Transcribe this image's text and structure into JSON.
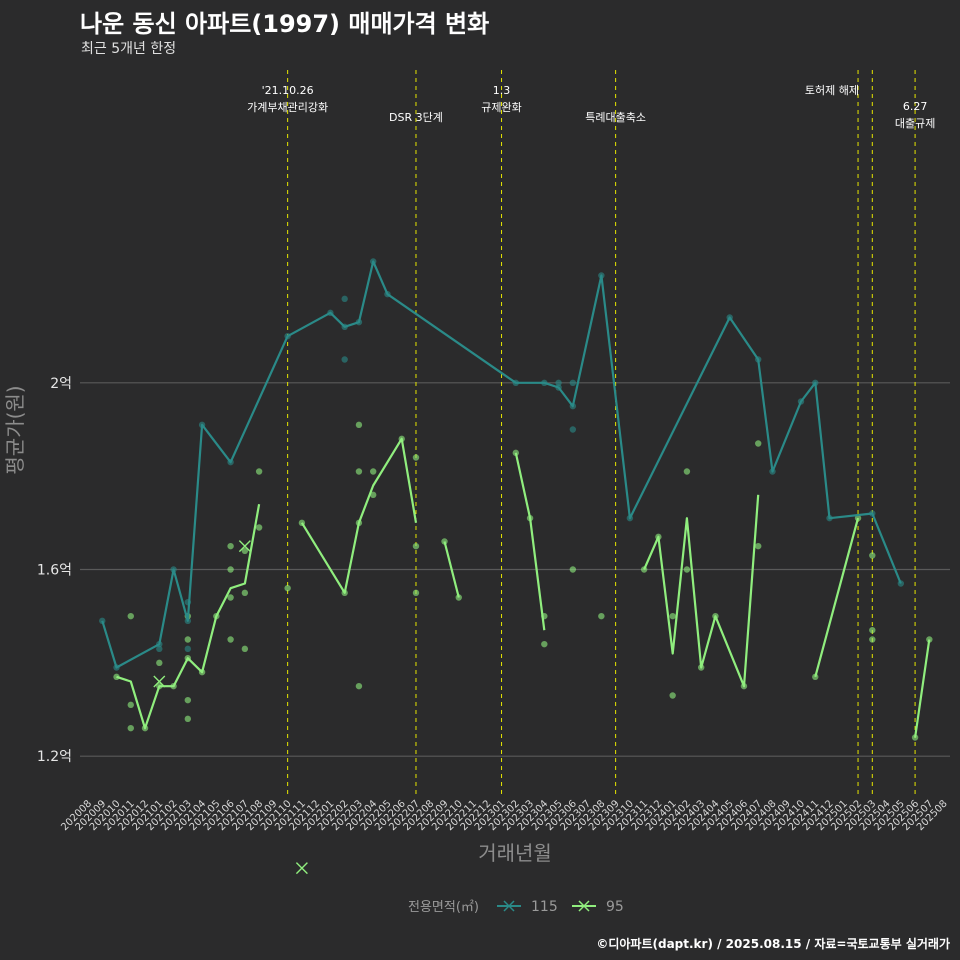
{
  "header": {
    "title": "나운 동신 아파트(1997) 매매가격 변화",
    "subtitle": "최근 5개년 한정"
  },
  "caption": "©디아파트(dapt.kr) / 2025.08.15 / 자료=국토교통부 실거래가",
  "chart_data": {
    "type": "line",
    "xlabel": "거래년월",
    "ylabel": "평균가(원)",
    "ylim": [
      0.85,
      2.65
    ],
    "y_unit": "억",
    "y_ticks": [
      {
        "value": 1.2,
        "label": "1.2억"
      },
      {
        "value": 1.6,
        "label": "1.6억"
      },
      {
        "value": 2.0,
        "label": "2억"
      }
    ],
    "grid": true,
    "categories": [
      "202008",
      "202009",
      "202010",
      "202011",
      "202012",
      "202101",
      "202102",
      "202103",
      "202104",
      "202105",
      "202106",
      "202107",
      "202108",
      "202109",
      "202110",
      "202111",
      "202112",
      "202201",
      "202202",
      "202203",
      "202204",
      "202205",
      "202206",
      "202207",
      "202208",
      "202209",
      "202210",
      "202211",
      "202212",
      "202301",
      "202302",
      "202303",
      "202304",
      "202305",
      "202306",
      "202307",
      "202308",
      "202309",
      "202310",
      "202311",
      "202312",
      "202401",
      "202402",
      "202403",
      "202404",
      "202405",
      "202406",
      "202407",
      "202408",
      "202409",
      "202410",
      "202411",
      "202412",
      "202501",
      "202502",
      "202503",
      "202504",
      "202505",
      "202506",
      "202507",
      "202508"
    ],
    "legend": {
      "title": "전용면적(㎡)",
      "position": "bottom"
    },
    "series": [
      {
        "name": "115",
        "color": "#2a8a88",
        "line": [
          [
            "202009",
            1.49
          ],
          [
            "202010",
            1.39
          ],
          [
            "202101",
            1.44
          ],
          [
            "202102",
            1.6
          ],
          [
            "202103",
            1.49
          ],
          [
            "202104",
            1.91
          ],
          [
            "202106",
            1.83
          ],
          [
            "202110",
            2.1
          ],
          [
            "202201",
            2.15
          ],
          [
            "202202",
            2.12
          ],
          [
            "202203",
            2.13
          ],
          [
            "202204",
            2.26
          ],
          [
            "202205",
            2.19
          ],
          [
            "202302",
            2.0
          ],
          [
            "202304",
            2.0
          ],
          [
            "202305",
            1.99
          ],
          [
            "202306",
            1.95
          ],
          [
            "202308",
            2.23
          ],
          [
            "202310",
            1.71
          ],
          [
            "202405",
            2.14
          ],
          [
            "202407",
            2.05
          ],
          [
            "202408",
            1.81
          ],
          [
            "202410",
            1.96
          ],
          [
            "202411",
            2.0
          ],
          [
            "202412",
            1.71
          ],
          [
            "202503",
            1.72
          ],
          [
            "202505",
            1.57
          ]
        ],
        "points": [
          [
            "202009",
            1.49
          ],
          [
            "202010",
            1.39
          ],
          [
            "202101",
            1.44
          ],
          [
            "202101",
            1.43
          ],
          [
            "202102",
            1.6
          ],
          [
            "202103",
            1.53
          ],
          [
            "202103",
            1.49
          ],
          [
            "202103",
            1.43
          ],
          [
            "202104",
            1.91
          ],
          [
            "202106",
            1.83
          ],
          [
            "202110",
            2.1
          ],
          [
            "202201",
            2.15
          ],
          [
            "202202",
            2.18
          ],
          [
            "202202",
            2.12
          ],
          [
            "202202",
            2.05
          ],
          [
            "202203",
            2.13
          ],
          [
            "202204",
            2.26
          ],
          [
            "202205",
            2.19
          ],
          [
            "202302",
            2.0
          ],
          [
            "202304",
            2.0
          ],
          [
            "202305",
            2.0
          ],
          [
            "202305",
            1.99
          ],
          [
            "202306",
            2.0
          ],
          [
            "202306",
            1.95
          ],
          [
            "202306",
            1.9
          ],
          [
            "202308",
            2.23
          ],
          [
            "202310",
            1.71
          ],
          [
            "202405",
            2.14
          ],
          [
            "202407",
            2.05
          ],
          [
            "202408",
            1.81
          ],
          [
            "202410",
            1.96
          ],
          [
            "202411",
            2.0
          ],
          [
            "202412",
            1.71
          ],
          [
            "202503",
            1.72
          ],
          [
            "202505",
            1.57
          ]
        ],
        "markers": []
      },
      {
        "name": "95",
        "color": "#90ee7e",
        "line": [
          [
            [
              "202010",
              1.37
            ],
            [
              "202011",
              1.36
            ],
            [
              "202012",
              1.26
            ],
            [
              "202101",
              1.35
            ],
            [
              "202102",
              1.35
            ],
            [
              "202103",
              1.41
            ],
            [
              "202104",
              1.38
            ],
            [
              "202105",
              1.5
            ],
            [
              "202106",
              1.56
            ],
            [
              "202107",
              1.57
            ],
            [
              "202108",
              1.74
            ]
          ],
          [
            [
              "202111",
              1.7
            ],
            [
              "202202",
              1.55
            ],
            [
              "202203",
              1.7
            ],
            [
              "202204",
              1.78
            ],
            [
              "202206",
              1.88
            ],
            [
              "202207",
              1.7
            ]
          ],
          [
            [
              "202209",
              1.66
            ],
            [
              "202210",
              1.54
            ]
          ],
          [
            [
              "202302",
              1.85
            ],
            [
              "202303",
              1.71
            ],
            [
              "202304",
              1.47
            ]
          ],
          [
            [
              "202311",
              1.6
            ],
            [
              "202312",
              1.67
            ],
            [
              "202401",
              1.42
            ],
            [
              "202402",
              1.71
            ],
            [
              "202403",
              1.39
            ],
            [
              "202404",
              1.5
            ],
            [
              "202406",
              1.35
            ],
            [
              "202407",
              1.76
            ]
          ],
          [
            [
              "202411",
              1.37
            ],
            [
              "202502",
              1.71
            ]
          ],
          [
            [
              "202506",
              1.24
            ],
            [
              "202507",
              1.45
            ]
          ]
        ],
        "points": [
          [
            "202010",
            1.37
          ],
          [
            "202011",
            1.5
          ],
          [
            "202011",
            1.31
          ],
          [
            "202011",
            1.26
          ],
          [
            "202012",
            1.26
          ],
          [
            "202101",
            1.4
          ],
          [
            "202101",
            1.35
          ],
          [
            "202102",
            1.35
          ],
          [
            "202103",
            1.5
          ],
          [
            "202103",
            1.45
          ],
          [
            "202103",
            1.41
          ],
          [
            "202103",
            1.32
          ],
          [
            "202103",
            1.28
          ],
          [
            "202104",
            1.38
          ],
          [
            "202105",
            1.5
          ],
          [
            "202106",
            1.65
          ],
          [
            "202106",
            1.6
          ],
          [
            "202106",
            1.54
          ],
          [
            "202106",
            1.45
          ],
          [
            "202107",
            1.64
          ],
          [
            "202107",
            1.55
          ],
          [
            "202107",
            1.43
          ],
          [
            "202108",
            1.81
          ],
          [
            "202108",
            1.69
          ],
          [
            "202110",
            1.56
          ],
          [
            "202111",
            1.7
          ],
          [
            "202202",
            1.55
          ],
          [
            "202203",
            1.91
          ],
          [
            "202203",
            1.81
          ],
          [
            "202203",
            1.7
          ],
          [
            "202203",
            1.35
          ],
          [
            "202204",
            1.81
          ],
          [
            "202204",
            1.76
          ],
          [
            "202206",
            1.88
          ],
          [
            "202207",
            1.84
          ],
          [
            "202207",
            1.65
          ],
          [
            "202207",
            1.55
          ],
          [
            "202209",
            1.66
          ],
          [
            "202210",
            1.54
          ],
          [
            "202302",
            1.85
          ],
          [
            "202303",
            1.71
          ],
          [
            "202304",
            1.5
          ],
          [
            "202304",
            1.44
          ],
          [
            "202306",
            1.6
          ],
          [
            "202308",
            1.5
          ],
          [
            "202311",
            1.6
          ],
          [
            "202312",
            1.67
          ],
          [
            "202401",
            1.5
          ],
          [
            "202401",
            1.33
          ],
          [
            "202402",
            1.81
          ],
          [
            "202402",
            1.6
          ],
          [
            "202403",
            1.39
          ],
          [
            "202404",
            1.5
          ],
          [
            "202406",
            1.35
          ],
          [
            "202407",
            1.87
          ],
          [
            "202407",
            1.65
          ],
          [
            "202411",
            1.37
          ],
          [
            "202502",
            1.71
          ],
          [
            "202503",
            1.63
          ],
          [
            "202503",
            1.47
          ],
          [
            "202503",
            1.45
          ],
          [
            "202506",
            1.24
          ],
          [
            "202507",
            1.45
          ]
        ],
        "markers": [
          [
            "202101",
            1.36
          ],
          [
            "202107",
            1.65
          ],
          [
            "202111",
            0.96
          ]
        ]
      }
    ],
    "events": [
      {
        "x": "202110",
        "lines": [
          "'21.10.26",
          "가계부채관리강화"
        ],
        "row": 1
      },
      {
        "x": "202207",
        "lines": [
          "DSR 3단계"
        ],
        "row": 2
      },
      {
        "x": "202301",
        "lines": [
          "1.3",
          "규제완화"
        ],
        "row": 1
      },
      {
        "x": "202309",
        "lines": [
          "특례대출축소"
        ],
        "row": 2
      },
      {
        "x": "202502",
        "lines": [
          "토허제 해제"
        ],
        "row": 1,
        "anchor": "end"
      },
      {
        "x": "202503",
        "lines": [],
        "row": 1
      },
      {
        "x": "202506",
        "lines": [
          "6.27",
          "대출규제"
        ],
        "row": 1.6
      }
    ]
  }
}
